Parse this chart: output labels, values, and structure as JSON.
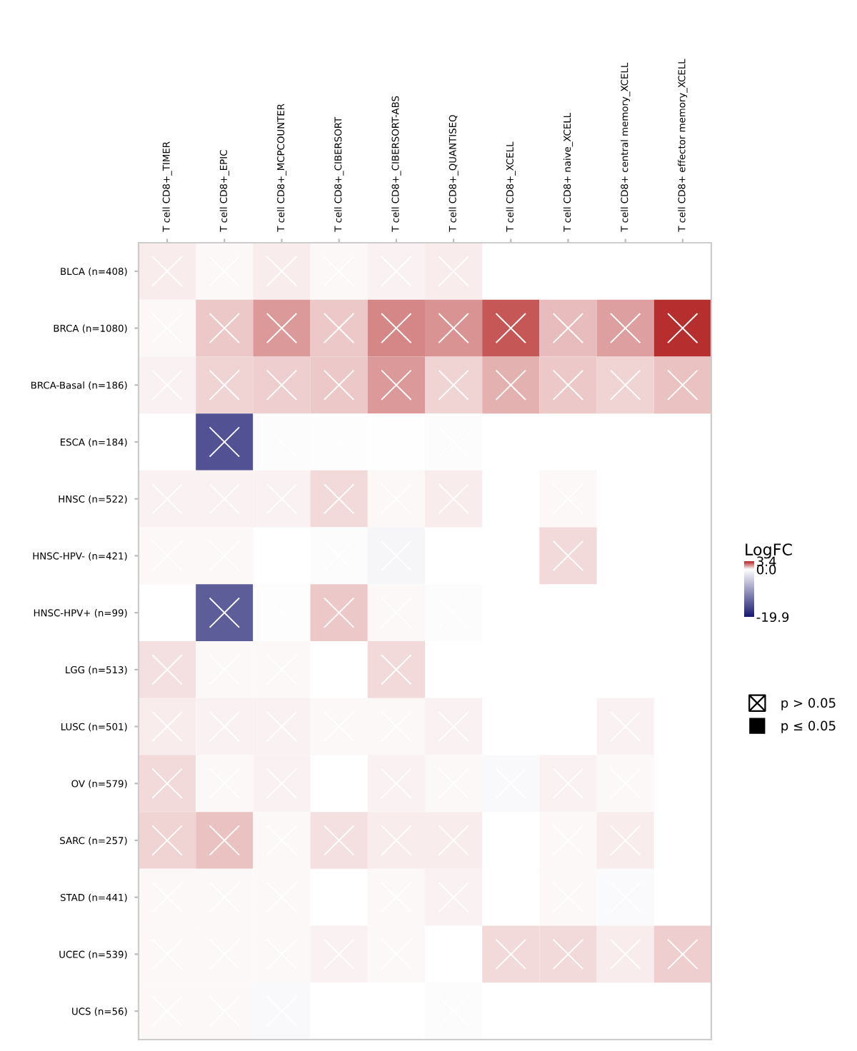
{
  "chart_data": {
    "type": "heatmap",
    "categories": [
      "T cell CD8+_TIMER",
      "T cell CD8+_EPIC",
      "T cell CD8+_MCPCOUNTER",
      "T cell CD8+_CIBERSORT",
      "T cell CD8+_CIBERSORT-ABS",
      "T cell CD8+_QUANTISEQ",
      "T cell CD8+_XCELL",
      "T cell CD8+ naive_XCELL",
      "T cell CD8+ central memory_XCELL",
      "T cell CD8+ effector memory_XCELL"
    ],
    "y_categories": [
      "BLCA (n=408)",
      "BRCA (n=1080)",
      "BRCA-Basal (n=186)",
      "ESCA (n=184)",
      "HNSC (n=522)",
      "HNSC-HPV- (n=421)",
      "HNSC-HPV+ (n=99)",
      "LGG (n=513)",
      "LUSC (n=501)",
      "OV (n=579)",
      "SARC (n=257)",
      "STAD (n=441)",
      "UCEC (n=539)",
      "UCS (n=56)"
    ],
    "cells": [
      [
        0.3,
        0.1,
        0.3,
        0.1,
        0.2,
        0.3,
        null,
        null,
        null,
        null
      ],
      [
        0.1,
        0.8,
        1.5,
        0.8,
        1.8,
        1.6,
        2.5,
        1.0,
        1.4,
        3.2
      ],
      [
        0.2,
        0.6,
        0.7,
        0.8,
        1.5,
        0.6,
        1.2,
        0.8,
        0.6,
        0.9
      ],
      [
        null,
        -15,
        -0.3,
        -0.2,
        -0.1,
        -0.3,
        null,
        null,
        null,
        null
      ],
      [
        0.2,
        0.2,
        0.2,
        0.5,
        0.1,
        0.3,
        null,
        0.1,
        null,
        null
      ],
      [
        0.1,
        0.1,
        null,
        -0.3,
        -0.8,
        null,
        null,
        0.5,
        null,
        null
      ],
      [
        null,
        -14,
        -0.2,
        0.8,
        0.1,
        -0.3,
        null,
        null,
        null,
        null
      ],
      [
        0.4,
        0.1,
        0.1,
        null,
        0.5,
        null,
        null,
        null,
        null,
        null
      ],
      [
        0.3,
        0.2,
        0.2,
        0.05,
        0.05,
        0.2,
        null,
        null,
        0.2,
        null
      ],
      [
        0.5,
        0.05,
        0.2,
        null,
        0.2,
        0.1,
        -0.6,
        0.2,
        0.1,
        null
      ],
      [
        0.6,
        0.9,
        0.1,
        0.4,
        0.3,
        0.3,
        null,
        0.1,
        0.3,
        null
      ],
      [
        0.1,
        0.1,
        0.1,
        null,
        0.1,
        0.2,
        null,
        0.05,
        -0.5,
        null
      ],
      [
        0.05,
        0.05,
        0.1,
        0.2,
        0.05,
        null,
        0.5,
        0.5,
        0.3,
        0.7
      ],
      [
        0.05,
        0.05,
        -0.6,
        null,
        null,
        -0.3,
        null,
        null,
        null,
        null
      ]
    ],
    "clabel": "LogFC",
    "clim": [
      -19.9,
      3.4
    ],
    "cticks": [
      3.4,
      {
        "value": 0,
        "label": "0.0"
      },
      -19.9
    ],
    "marker": "cross",
    "annotations": [
      "p > 0.05",
      "p ≤ 0.05"
    ]
  }
}
